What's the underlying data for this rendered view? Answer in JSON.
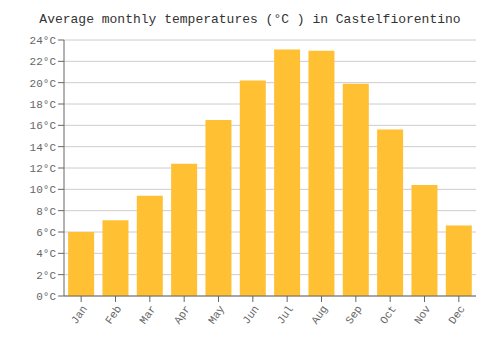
{
  "chart_data": {
    "type": "bar",
    "title": "Average monthly temperatures (°C ) in Castelfiorentino",
    "categories": [
      "Jan",
      "Feb",
      "Mar",
      "Apr",
      "May",
      "Jun",
      "Jul",
      "Aug",
      "Sep",
      "Oct",
      "Nov",
      "Dec"
    ],
    "values": [
      6.0,
      7.1,
      9.4,
      12.4,
      16.5,
      20.2,
      23.1,
      23.0,
      19.9,
      15.6,
      10.4,
      6.6
    ],
    "color": "#FFC033",
    "ylim": [
      0,
      24
    ],
    "yticks": [
      {
        "value": 0,
        "label": "0°C"
      },
      {
        "value": 2,
        "label": "2°C"
      },
      {
        "value": 4,
        "label": "4°C"
      },
      {
        "value": 6,
        "label": "6°C"
      },
      {
        "value": 8,
        "label": "8°C"
      },
      {
        "value": 10,
        "label": "10°C"
      },
      {
        "value": 12,
        "label": "12°C"
      },
      {
        "value": 14,
        "label": "14°C"
      },
      {
        "value": 16,
        "label": "16°C"
      },
      {
        "value": 18,
        "label": "18°C"
      },
      {
        "value": 20,
        "label": "20°C"
      },
      {
        "value": 22,
        "label": "22°C"
      },
      {
        "value": 24,
        "label": "24°C"
      }
    ],
    "grid": true
  }
}
